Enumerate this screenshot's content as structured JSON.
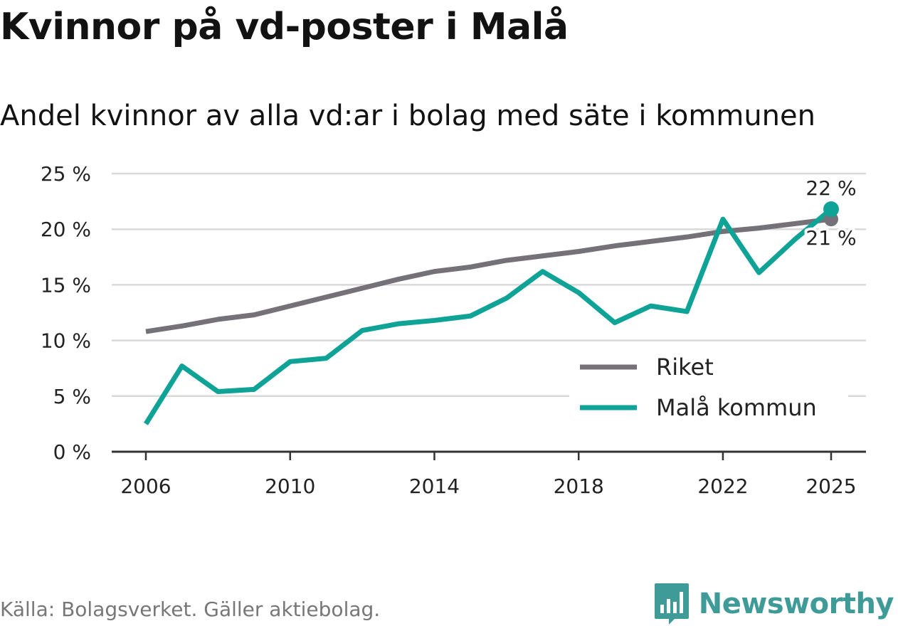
{
  "header": {
    "title": "Kvinnor på vd-poster i Malå",
    "subtitle": "Andel kvinnor av alla vd:ar i bolag med säte i kommunen"
  },
  "footer": {
    "source": "Källa: Bolagsverket. Gäller aktiebolag.",
    "brand": "Newsworthy"
  },
  "colors": {
    "riket": "#747278",
    "mala": "#0fa297",
    "grid": "#d9d9d9",
    "axis": "#333333",
    "brand": "#3f9b98"
  },
  "chart_data": {
    "type": "line",
    "title": "Kvinnor på vd-poster i Malå",
    "subtitle": "Andel kvinnor av alla vd:ar i bolag med säte i kommunen",
    "xlabel": "",
    "ylabel": "",
    "x": [
      2006,
      2007,
      2008,
      2009,
      2010,
      2011,
      2012,
      2013,
      2014,
      2015,
      2016,
      2017,
      2018,
      2019,
      2020,
      2021,
      2022,
      2023,
      2024,
      2025
    ],
    "xlim": [
      2006,
      2025
    ],
    "ylim": [
      0,
      25
    ],
    "xticks": [
      2006,
      2010,
      2014,
      2018,
      2022,
      2025
    ],
    "xtick_labels": [
      "2006",
      "2010",
      "2014",
      "2018",
      "2022",
      "2025"
    ],
    "yticks": [
      0,
      5,
      10,
      15,
      20,
      25
    ],
    "ytick_labels": [
      "0 %",
      "5 %",
      "10 %",
      "15 %",
      "20 %",
      "25 %"
    ],
    "grid": true,
    "legend_position": "bottom-right",
    "series": [
      {
        "name": "Riket",
        "color": "#747278",
        "values": [
          10.8,
          11.3,
          11.9,
          12.3,
          13.1,
          13.9,
          14.7,
          15.5,
          16.2,
          16.6,
          17.2,
          17.6,
          18.0,
          18.5,
          18.9,
          19.3,
          19.8,
          20.1,
          20.5,
          20.9
        ],
        "end_label": "21 %"
      },
      {
        "name": "Malå kommun",
        "color": "#0fa297",
        "values": [
          2.5,
          7.7,
          5.4,
          5.6,
          8.1,
          8.4,
          10.9,
          11.5,
          11.8,
          12.2,
          13.8,
          16.2,
          14.3,
          11.6,
          13.1,
          12.6,
          20.9,
          16.1,
          19.1,
          21.8
        ],
        "end_label": "22 %"
      }
    ]
  }
}
